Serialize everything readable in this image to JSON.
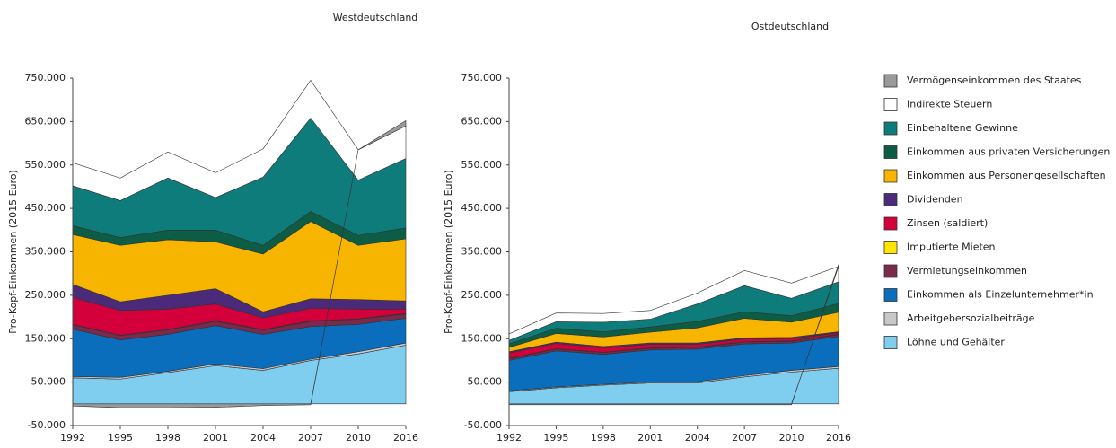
{
  "chart_data": [
    {
      "type": "stacked_area",
      "title": "Westdeutschland",
      "y_label": "Pro-Kopf-Einkommen (2015 Euro)",
      "categories": [
        "1992",
        "1995",
        "1998",
        "2001",
        "2004",
        "2007",
        "2010",
        "2016"
      ],
      "ylim": [
        -50000,
        750000
      ],
      "yticks": [
        {
          "value": -50000,
          "label": "-50.000"
        },
        {
          "value": 50000,
          "label": "50.000"
        },
        {
          "value": 150000,
          "label": "150.000"
        },
        {
          "value": 250000,
          "label": "250.000"
        },
        {
          "value": 350000,
          "label": "350.000"
        },
        {
          "value": 450000,
          "label": "450.000"
        },
        {
          "value": 550000,
          "label": "550.000"
        },
        {
          "value": 650000,
          "label": "650.000"
        },
        {
          "value": 750000,
          "label": "750.000"
        }
      ],
      "series": [
        {
          "name": "Löhne und Gehälter",
          "color": "#7fcdef",
          "values": [
            60000,
            57000,
            72000,
            88000,
            77000,
            100000,
            115000,
            135000
          ]
        },
        {
          "name": "Arbeitgebersozialbeiträge",
          "color": "#c8c8c8",
          "values": [
            3000,
            4000,
            3000,
            4000,
            4000,
            3000,
            5000,
            5000
          ]
        },
        {
          "name": "Einkommen als Einzelunternehmer*in",
          "color": "#0a6ebd",
          "values": [
            109000,
            86000,
            85000,
            88000,
            79000,
            75000,
            63000,
            57000
          ]
        },
        {
          "name": "Vermietungseinkommen",
          "color": "#7a2a4a",
          "values": [
            10000,
            10000,
            10000,
            10000,
            10000,
            12000,
            12000,
            10000
          ]
        },
        {
          "name": "Imputierte Mieten",
          "color": "#ffe600",
          "values": [
            1000,
            1000,
            1000,
            1000,
            1000,
            1000,
            1000,
            1000
          ]
        },
        {
          "name": "Zinsen (saldiert)",
          "color": "#d4003c",
          "values": [
            62000,
            57000,
            47000,
            39000,
            27000,
            29000,
            22000,
            10000
          ]
        },
        {
          "name": "Dividenden",
          "color": "#4b2a7a",
          "values": [
            30000,
            20000,
            32000,
            35000,
            14000,
            22000,
            22000,
            19000
          ]
        },
        {
          "name": "Einkommen aus Personengesellschaften",
          "color": "#f7b500",
          "values": [
            115000,
            130000,
            128000,
            108000,
            133000,
            178000,
            125000,
            143000
          ]
        },
        {
          "name": "Einkommen aus privaten Versicherungen",
          "color": "#0d5c45",
          "values": [
            20000,
            18000,
            22000,
            27000,
            20000,
            23000,
            23000,
            25000
          ]
        },
        {
          "name": "Einbehaltene Gewinne",
          "color": "#0e7c7b",
          "values": [
            92000,
            85000,
            120000,
            75000,
            157000,
            215000,
            127000,
            160000
          ]
        },
        {
          "name": "Indirekte Steuern",
          "color": "#ffffff",
          "values": [
            53000,
            52000,
            60000,
            57000,
            65000,
            87000,
            70000,
            75000
          ]
        },
        {
          "name": "Vermögenseinkommen des Staates",
          "color": "#9a9a9a",
          "values": [
            -5000,
            -9000,
            -9000,
            -8000,
            -4000,
            -2000,
            0,
            12000
          ]
        }
      ]
    },
    {
      "type": "stacked_area",
      "title": "Ostdeutschland",
      "y_label": "Pro-Kopf-Einkommen (2015 Euro)",
      "categories": [
        "1992",
        "1995",
        "1998",
        "2001",
        "2004",
        "2007",
        "2010",
        "2016"
      ],
      "ylim": [
        -50000,
        750000
      ],
      "yticks": [
        {
          "value": -50000,
          "label": "-50.000"
        },
        {
          "value": 50000,
          "label": "50.000"
        },
        {
          "value": 150000,
          "label": "150.000"
        },
        {
          "value": 250000,
          "label": "250.000"
        },
        {
          "value": 350000,
          "label": "350.000"
        },
        {
          "value": 450000,
          "label": "450.000"
        },
        {
          "value": 550000,
          "label": "550.000"
        },
        {
          "value": 650000,
          "label": "650.000"
        },
        {
          "value": 750000,
          "label": "750.000"
        }
      ],
      "series": [
        {
          "color": "#7fcdef",
          "values": [
            28000,
            37000,
            43000,
            48000,
            48000,
            62000,
            73000,
            82000
          ]
        },
        {
          "color": "#c8c8c8",
          "values": [
            2000,
            2000,
            2000,
            2000,
            3000,
            3000,
            4000,
            4000
          ]
        },
        {
          "color": "#0a6ebd",
          "values": [
            70000,
            83000,
            69000,
            74000,
            75000,
            73000,
            63000,
            69000
          ]
        },
        {
          "color": "#7a2a4a",
          "values": [
            4000,
            4000,
            4000,
            4000,
            4000,
            4000,
            4000,
            4000
          ]
        },
        {
          "color": "#ffe600",
          "values": [
            1000,
            1000,
            1000,
            1000,
            1000,
            1000,
            1000,
            1000
          ]
        },
        {
          "color": "#d4003c",
          "values": [
            12000,
            12000,
            10000,
            8000,
            6000,
            6000,
            5000,
            3000
          ]
        },
        {
          "color": "#4b2a7a",
          "values": [
            3000,
            3000,
            3000,
            3000,
            3000,
            3000,
            3000,
            3000
          ]
        },
        {
          "color": "#f7b500",
          "values": [
            10000,
            20000,
            22000,
            25000,
            35000,
            45000,
            35000,
            45000
          ]
        },
        {
          "color": "#0d5c45",
          "values": [
            8000,
            12000,
            12000,
            12000,
            15000,
            15000,
            15000,
            20000
          ]
        },
        {
          "color": "#0e7c7b",
          "values": [
            8000,
            15000,
            22000,
            18000,
            40000,
            60000,
            40000,
            50000
          ]
        },
        {
          "color": "#ffffff",
          "values": [
            15000,
            20000,
            20000,
            20000,
            25000,
            35000,
            35000,
            35000
          ]
        },
        {
          "color": "#9a9a9a",
          "values": [
            -2000,
            -2000,
            -2000,
            -2000,
            -2000,
            -2000,
            -2000,
            5000
          ]
        }
      ]
    }
  ]
}
